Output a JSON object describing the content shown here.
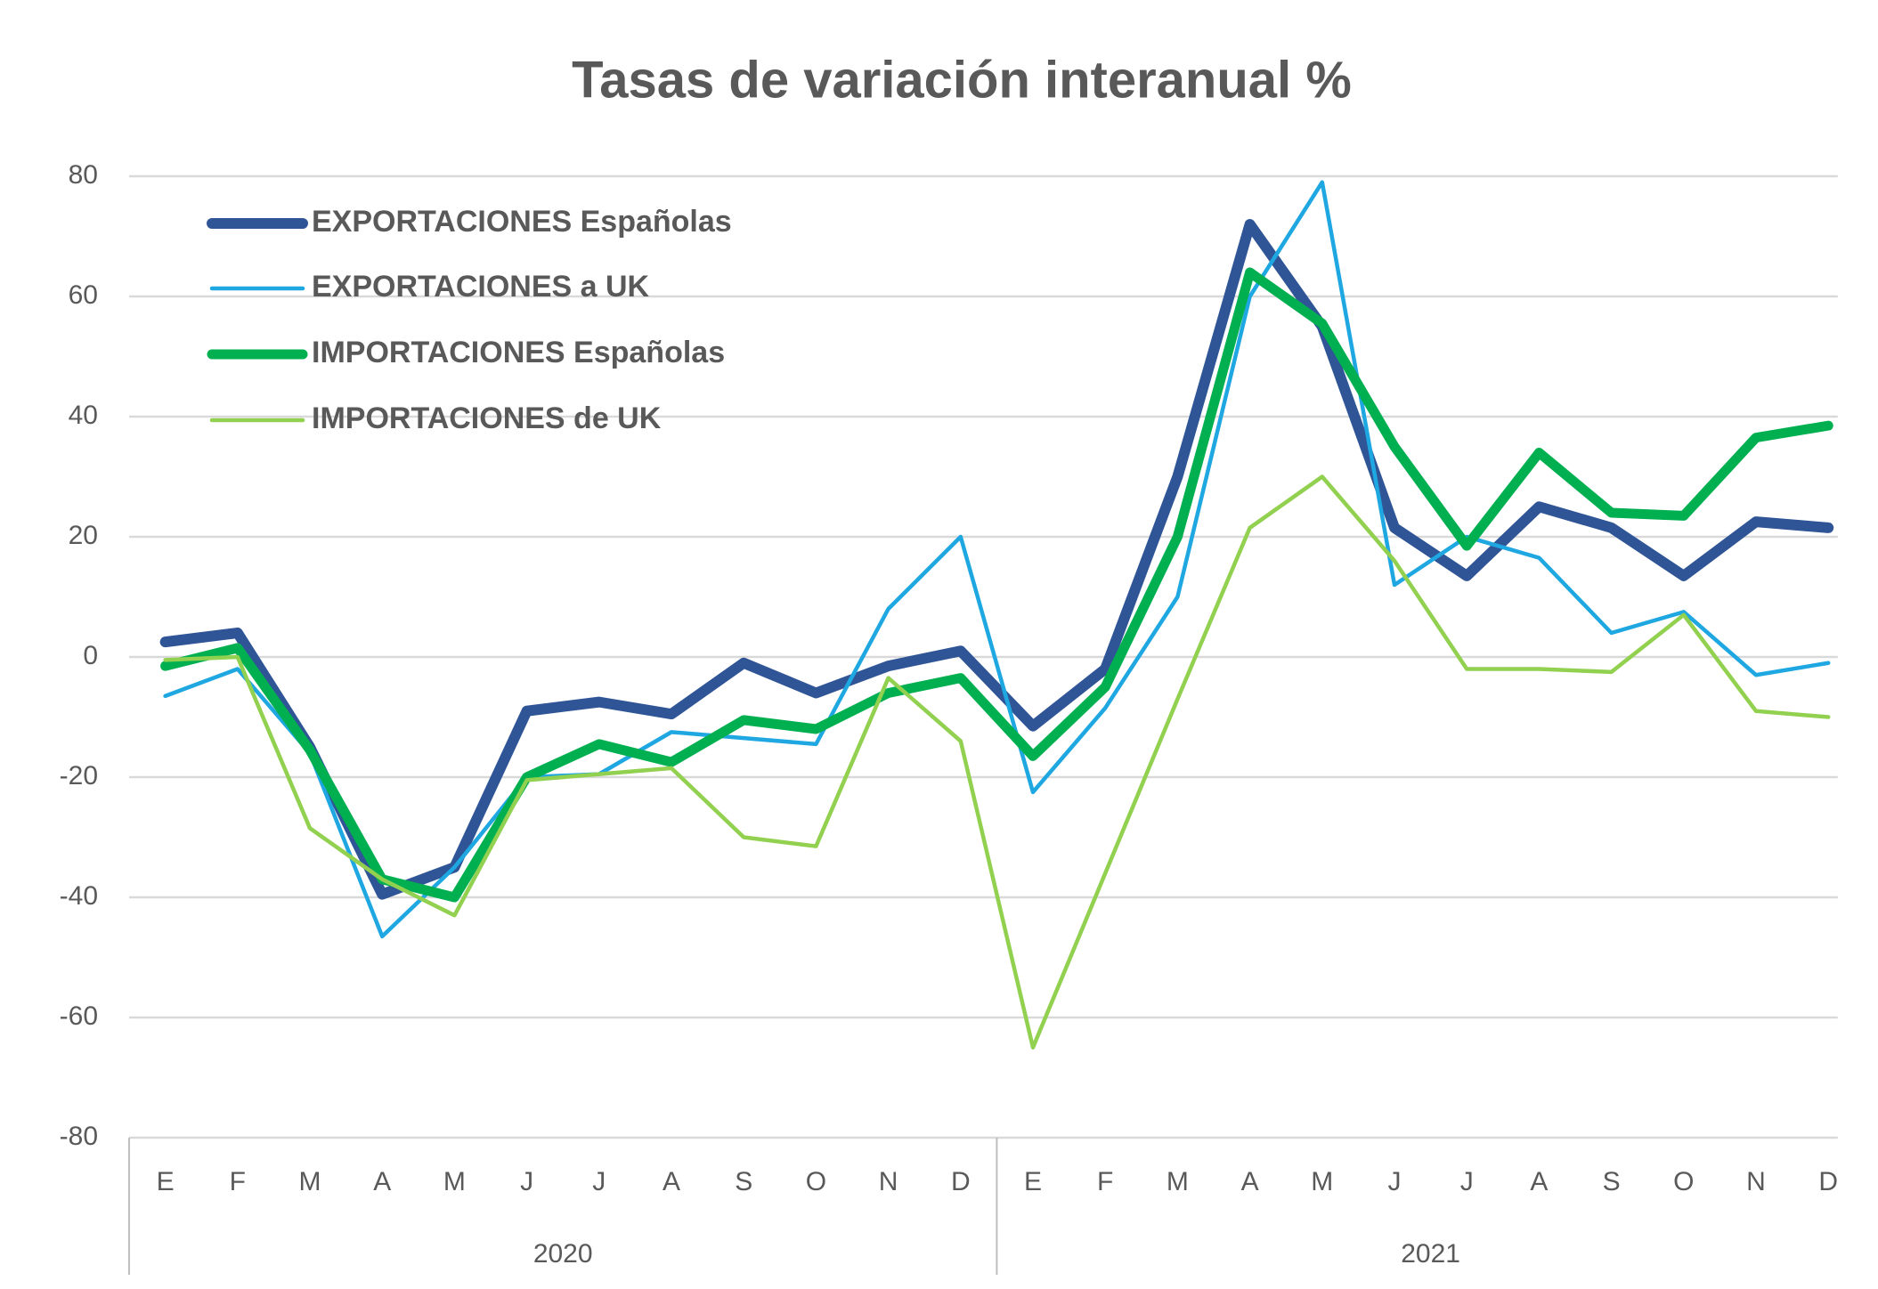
{
  "chart_data": {
    "type": "line",
    "title": "Tasas de variación interanual %",
    "categories": [
      "E",
      "F",
      "M",
      "A",
      "M",
      "J",
      "J",
      "A",
      "S",
      "O",
      "N",
      "D",
      "E",
      "F",
      "M",
      "A",
      "M",
      "J",
      "J",
      "A",
      "S",
      "O",
      "N",
      "D"
    ],
    "years": [
      "2020",
      "2021"
    ],
    "ylim": [
      -80,
      80
    ],
    "yticks": [
      -80,
      -60,
      -40,
      -20,
      0,
      20,
      40,
      60,
      80
    ],
    "grid": true,
    "legend": "upper left",
    "series": [
      {
        "name": "EXPORTACIONES Españolas",
        "color": "#2f5597",
        "values": [
          2.5,
          4,
          -15,
          -39.5,
          -35,
          -9,
          -7.5,
          -9.5,
          -1,
          -6,
          -1.5,
          1,
          -11.5,
          -2,
          30,
          72,
          55,
          21.5,
          13.5,
          25,
          21.5,
          13.5,
          22.5,
          21.5
        ]
      },
      {
        "name": "EXPORTACIONES a UK",
        "color": "#1ea7e1",
        "values": [
          -6.5,
          -2,
          -16,
          -46.5,
          -35,
          -20,
          -19.5,
          -12.5,
          -13.5,
          -14.5,
          8,
          20,
          -22.5,
          -8.5,
          10,
          60,
          79,
          12,
          20,
          16.5,
          4,
          7.5,
          -3,
          -1
        ]
      },
      {
        "name": "IMPORTACIONES Españolas",
        "color": "#00b050",
        "values": [
          -1.5,
          1.5,
          -15.5,
          -37,
          -40,
          -20,
          -14.5,
          -17.5,
          -10.5,
          -12,
          -6,
          -3.5,
          -16.5,
          -5,
          20,
          64,
          55.5,
          35,
          18.5,
          34,
          24,
          23.5,
          36.5,
          38.5
        ]
      },
      {
        "name": "IMPORTACIONES de UK",
        "color": "#92d050",
        "values": [
          -0.5,
          0,
          -28.5,
          -37,
          -43,
          -20.5,
          -19.5,
          -18.5,
          -30,
          -31.5,
          -3.5,
          -14,
          -65,
          -36,
          -7,
          21.5,
          30,
          16,
          -2,
          -2,
          -2.5,
          7,
          -9,
          -10
        ]
      }
    ]
  }
}
